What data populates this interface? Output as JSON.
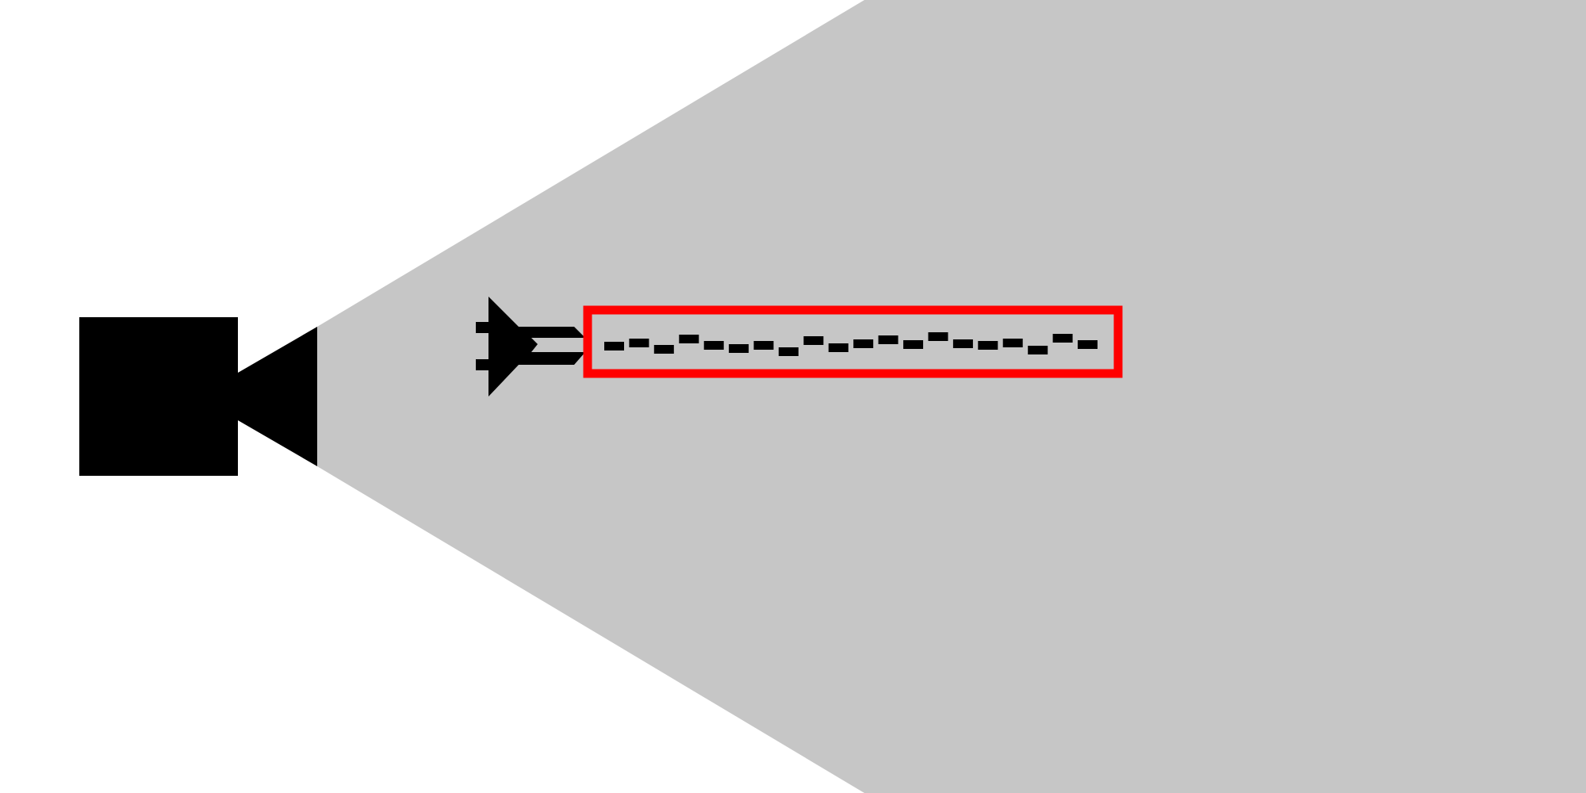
{
  "scene": {
    "background_color": "#ffffff",
    "field_of_view_color": "#c6c6c6",
    "camera_color": "#000000",
    "aircraft_color": "#000000",
    "detection_box_color": "#ff0000",
    "detection_box_fill": "#c6c6c6",
    "camera_icon": "video-camera-icon",
    "aircraft_icon": "fighter-jet-icon",
    "text_dash_marks": 20
  }
}
